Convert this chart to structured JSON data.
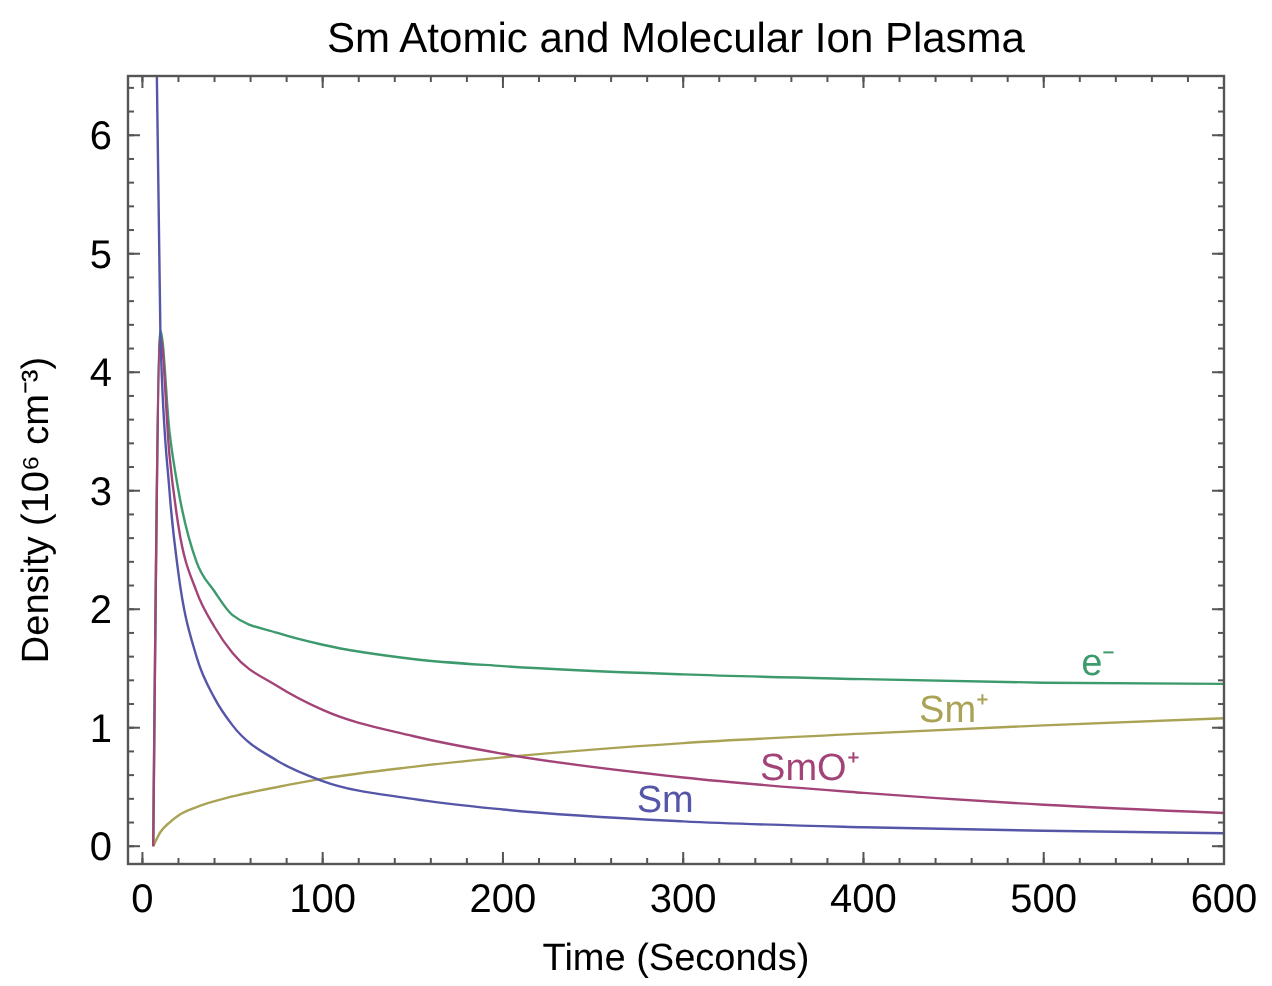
{
  "chart_data": {
    "type": "line",
    "title": "Sm Atomic and Molecular Ion Plasma",
    "xlabel": "Time (Seconds)",
    "ylabel": "Density (10⁶ cm⁻³)",
    "xlim": [
      -8,
      600
    ],
    "ylim": [
      -0.15,
      6.5
    ],
    "xticks": [
      0,
      100,
      200,
      300,
      400,
      500,
      600
    ],
    "yticks": [
      0,
      1,
      2,
      3,
      4,
      5,
      6
    ],
    "grid": false,
    "marker": "none",
    "line_style": "solid",
    "series": [
      {
        "name": "e⁻",
        "color": "#3d9a6c",
        "x": [
          6,
          10,
          15,
          20,
          30,
          40,
          50,
          75,
          100,
          150,
          200,
          300,
          400,
          500,
          600
        ],
        "values": [
          0,
          4.35,
          3.5,
          3.0,
          2.4,
          2.15,
          1.95,
          1.8,
          1.7,
          1.58,
          1.52,
          1.45,
          1.41,
          1.38,
          1.37
        ]
      },
      {
        "name": "Sm⁺",
        "color": "#aaa355",
        "x": [
          6,
          10,
          15,
          20,
          30,
          50,
          75,
          100,
          150,
          200,
          300,
          400,
          500,
          600
        ],
        "values": [
          0,
          0.12,
          0.2,
          0.26,
          0.33,
          0.42,
          0.5,
          0.57,
          0.67,
          0.75,
          0.87,
          0.95,
          1.02,
          1.08
        ]
      },
      {
        "name": "SmO⁺",
        "color": "#a24478",
        "x": [
          6,
          10,
          15,
          20,
          30,
          40,
          50,
          75,
          100,
          150,
          200,
          300,
          400,
          500,
          600
        ],
        "values": [
          0,
          4.3,
          3.3,
          2.7,
          2.15,
          1.85,
          1.63,
          1.35,
          1.15,
          0.93,
          0.78,
          0.58,
          0.45,
          0.35,
          0.28
        ]
      },
      {
        "name": "Sm",
        "color": "#5656a8",
        "x": [
          8,
          10,
          15,
          20,
          30,
          40,
          50,
          75,
          100,
          150,
          200,
          300,
          400,
          500,
          600
        ],
        "values": [
          6.5,
          4.3,
          3.0,
          2.3,
          1.6,
          1.25,
          1.02,
          0.72,
          0.55,
          0.4,
          0.31,
          0.21,
          0.16,
          0.13,
          0.11
        ]
      }
    ]
  }
}
